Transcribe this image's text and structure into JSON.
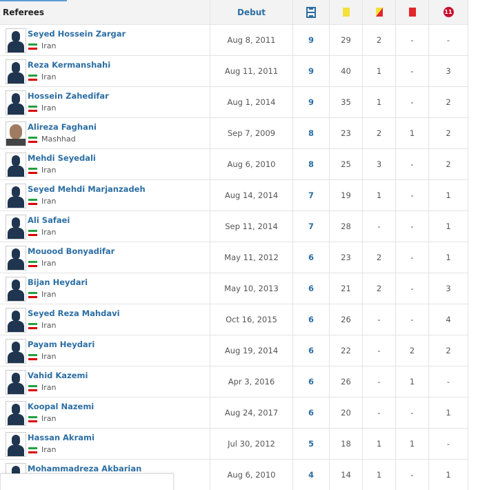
{
  "table": {
    "headers": [
      "Referees",
      "Debut"
    ],
    "penalty_icon_label": "11",
    "rows": [
      {
        "name": "Seyed Hossein Zargar",
        "location": "Iran",
        "debut": "Aug 8, 2011",
        "stats": [
          9,
          29,
          2,
          "-",
          "-"
        ]
      },
      {
        "name": "Reza Kermanshahi",
        "location": "Iran",
        "debut": "Aug 11, 2011",
        "stats": [
          9,
          40,
          1,
          "-",
          3
        ]
      },
      {
        "name": "Hossein Zahedifar",
        "location": "Iran",
        "debut": "Aug 1, 2014",
        "stats": [
          9,
          35,
          1,
          "-",
          2
        ]
      },
      {
        "name": "Alireza Faghani",
        "location": "Mashhad",
        "debut": "Sep 7, 2009",
        "stats": [
          8,
          23,
          2,
          1,
          2
        ]
      },
      {
        "name": "Mehdi Seyedali",
        "location": "Iran",
        "debut": "Aug 6, 2010",
        "stats": [
          8,
          25,
          3,
          "-",
          2
        ]
      },
      {
        "name": "Seyed Mehdi Marjanzadeh",
        "location": "Iran",
        "debut": "Aug 14, 2014",
        "stats": [
          7,
          19,
          1,
          "-",
          1
        ]
      },
      {
        "name": "Ali Safaei",
        "location": "Iran",
        "debut": "Sep 11, 2014",
        "stats": [
          7,
          28,
          "-",
          "-",
          1
        ]
      },
      {
        "name": "Mouood Bonyadifar",
        "location": "Iran",
        "debut": "May 11, 2012",
        "stats": [
          6,
          23,
          2,
          "-",
          1
        ]
      },
      {
        "name": "Bijan Heydari",
        "location": "Iran",
        "debut": "May 10, 2013",
        "stats": [
          6,
          21,
          2,
          "-",
          3
        ]
      },
      {
        "name": "Seyed Reza Mahdavi",
        "location": "Iran",
        "debut": "Oct 16, 2015",
        "stats": [
          6,
          26,
          "-",
          "-",
          4
        ]
      },
      {
        "name": "Payam Heydari",
        "location": "Iran",
        "debut": "Aug 19, 2014",
        "stats": [
          6,
          22,
          "-",
          2,
          2
        ]
      },
      {
        "name": "Vahid Kazemi",
        "location": "Iran",
        "debut": "Apr 3, 2016",
        "stats": [
          6,
          26,
          "-",
          1,
          "-"
        ]
      },
      {
        "name": "Koopal Nazemi",
        "location": "Iran",
        "debut": "Aug 24, 2017",
        "stats": [
          6,
          20,
          "-",
          "-",
          1
        ]
      },
      {
        "name": "Hassan Akrami",
        "location": "Iran",
        "debut": "Jul 30, 2012",
        "stats": [
          5,
          18,
          1,
          1,
          "-"
        ]
      },
      {
        "name": "Mohammadreza Akbarian",
        "debut": "Aug 6, 2010",
        "stats": [
          4,
          14,
          1,
          "-",
          1
        ]
      }
    ]
  }
}
